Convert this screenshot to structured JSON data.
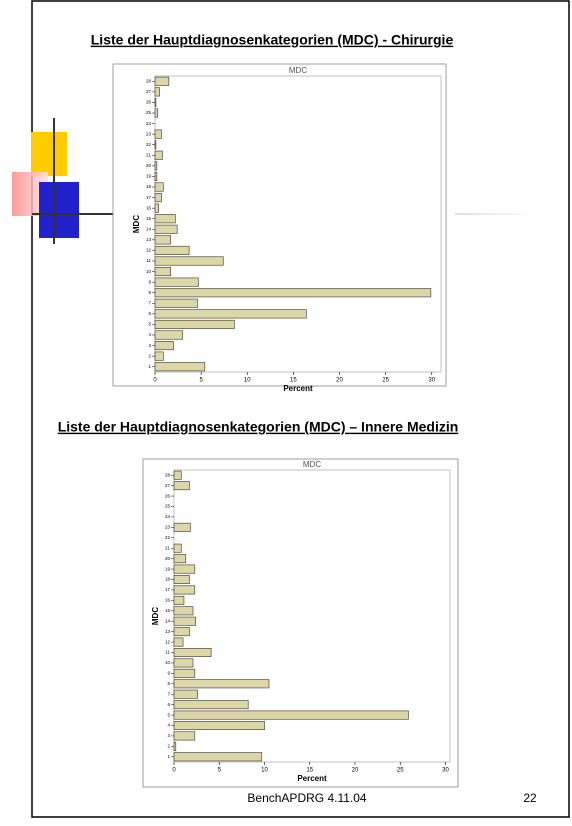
{
  "slide": {
    "headings": [
      "Liste der Hauptdiagnosenkategorien (MDC) - Chirurgie",
      "Liste der Hauptdiagnosenkategorien (MDC) – Innere Medizin"
    ],
    "footer": "BenchAPDRG 4.11.04",
    "page_number": "22"
  },
  "chart_data": [
    {
      "type": "bar",
      "orientation": "horizontal",
      "title": "MDC",
      "xlabel": "Percent",
      "ylabel": "MDC",
      "categories": [
        "1",
        "2",
        "3",
        "4",
        "5",
        "6",
        "7",
        "8",
        "9",
        "10",
        "11",
        "12",
        "13",
        "14",
        "15",
        "16",
        "17",
        "18",
        "19",
        "20",
        "21",
        "22",
        "23",
        "24",
        "25",
        "26",
        "27",
        "28"
      ],
      "values": [
        5.4,
        0.9,
        2.0,
        3.0,
        8.6,
        16.4,
        4.6,
        29.9,
        4.7,
        1.7,
        7.4,
        3.7,
        1.7,
        2.4,
        2.2,
        0.4,
        0.7,
        0.9,
        0.2,
        0.2,
        0.8,
        0.1,
        0.7,
        0,
        0.3,
        0.1,
        0.5,
        1.5
      ],
      "color": "#ddd6a6",
      "xlim": [
        0,
        31
      ],
      "xticks": [
        0,
        5,
        10,
        15,
        20,
        25,
        30
      ]
    },
    {
      "type": "bar",
      "orientation": "horizontal",
      "title": "MDC",
      "xlabel": "Percent",
      "ylabel": "MDC",
      "categories": [
        "1",
        "2",
        "3",
        "4",
        "5",
        "6",
        "7",
        "8",
        "9",
        "10",
        "11",
        "12",
        "13",
        "14",
        "15",
        "16",
        "17",
        "18",
        "19",
        "20",
        "21",
        "22",
        "23",
        "24",
        "25",
        "26",
        "27",
        "28"
      ],
      "values": [
        9.7,
        0.2,
        2.3,
        10.0,
        25.9,
        8.2,
        2.6,
        10.5,
        2.3,
        2.1,
        4.1,
        1.0,
        1.7,
        2.4,
        2.1,
        1.1,
        2.3,
        1.7,
        2.3,
        1.3,
        0.8,
        0,
        1.8,
        0,
        0,
        0,
        1.7,
        0.8
      ],
      "color": "#ddd6a6",
      "xlim": [
        0,
        30.5
      ],
      "xticks": [
        0,
        5,
        10,
        15,
        20,
        25,
        30
      ]
    }
  ]
}
